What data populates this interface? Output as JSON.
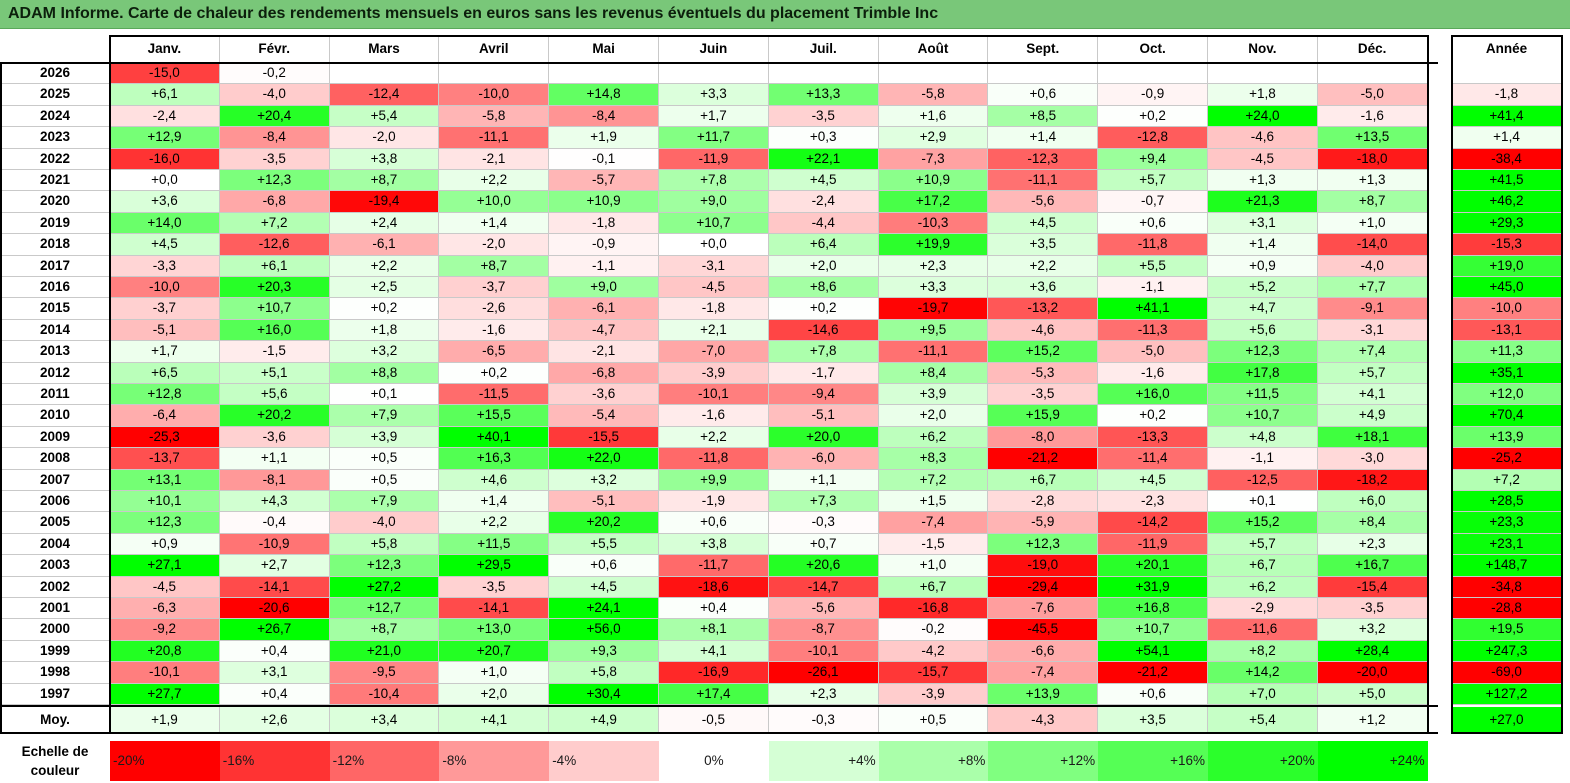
{
  "title": "ADAM Informe. Carte de chaleur des rendements mensuels en euros sans les revenus éventuels du placement Trimble Inc",
  "chart_data": {
    "type": "heatmap",
    "title": "ADAM Informe. Carte de chaleur des rendements mensuels en euros sans les revenus éventuels du placement Trimble Inc",
    "months": [
      "Janv.",
      "Févr.",
      "Mars",
      "Avril",
      "Mai",
      "Juin",
      "Juil.",
      "Août",
      "Sept.",
      "Oct.",
      "Nov.",
      "Déc."
    ],
    "year_header": "Année",
    "avg_label": "Moy.",
    "rows": [
      {
        "year": "2026",
        "values": [
          "-15,0",
          "-0,2",
          "",
          "",
          "",
          "",
          "",
          "",
          "",
          "",
          "",
          ""
        ],
        "annual": ""
      },
      {
        "year": "2025",
        "values": [
          "+6,1",
          "-4,0",
          "-12,4",
          "-10,0",
          "+14,8",
          "+3,3",
          "+13,3",
          "-5,8",
          "+0,6",
          "-0,9",
          "+1,8",
          "-5,0"
        ],
        "annual": "-1,8"
      },
      {
        "year": "2024",
        "values": [
          "-2,4",
          "+20,4",
          "+5,4",
          "-5,8",
          "-8,4",
          "+1,7",
          "-3,5",
          "+1,6",
          "+8,5",
          "+0,2",
          "+24,0",
          "-1,6"
        ],
        "annual": "+41,4"
      },
      {
        "year": "2023",
        "values": [
          "+12,9",
          "-8,4",
          "-2,0",
          "-11,1",
          "+1,9",
          "+11,7",
          "+0,3",
          "+2,9",
          "+1,4",
          "-12,8",
          "-4,6",
          "+13,5"
        ],
        "annual": "+1,4"
      },
      {
        "year": "2022",
        "values": [
          "-16,0",
          "-3,5",
          "+3,8",
          "-2,1",
          "-0,1",
          "-11,9",
          "+22,1",
          "-7,3",
          "-12,3",
          "+9,4",
          "-4,5",
          "-18,0"
        ],
        "annual": "-38,4"
      },
      {
        "year": "2021",
        "values": [
          "+0,0",
          "+12,3",
          "+8,7",
          "+2,2",
          "-5,7",
          "+7,8",
          "+4,5",
          "+10,9",
          "-11,1",
          "+5,7",
          "+1,3",
          "+1,3"
        ],
        "annual": "+41,5"
      },
      {
        "year": "2020",
        "values": [
          "+3,6",
          "-6,8",
          "-19,4",
          "+10,0",
          "+10,9",
          "+9,0",
          "-2,4",
          "+17,2",
          "-5,6",
          "-0,7",
          "+21,3",
          "+8,7"
        ],
        "annual": "+46,2"
      },
      {
        "year": "2019",
        "values": [
          "+14,0",
          "+7,2",
          "+2,4",
          "+1,4",
          "-1,8",
          "+10,7",
          "-4,4",
          "-10,3",
          "+4,5",
          "+0,6",
          "+3,1",
          "+1,0"
        ],
        "annual": "+29,3"
      },
      {
        "year": "2018",
        "values": [
          "+4,5",
          "-12,6",
          "-6,1",
          "-2,0",
          "-0,9",
          "+0,0",
          "+6,4",
          "+19,9",
          "+3,5",
          "-11,8",
          "+1,4",
          "-14,0"
        ],
        "annual": "-15,3"
      },
      {
        "year": "2017",
        "values": [
          "-3,3",
          "+6,1",
          "+2,2",
          "+8,7",
          "-1,1",
          "-3,1",
          "+2,0",
          "+2,3",
          "+2,2",
          "+5,5",
          "+0,9",
          "-4,0"
        ],
        "annual": "+19,0"
      },
      {
        "year": "2016",
        "values": [
          "-10,0",
          "+20,3",
          "+2,5",
          "-3,7",
          "+9,0",
          "-4,5",
          "+8,6",
          "+3,3",
          "+3,6",
          "-1,1",
          "+5,2",
          "+7,7"
        ],
        "annual": "+45,0"
      },
      {
        "year": "2015",
        "values": [
          "-3,7",
          "+10,7",
          "+0,2",
          "-2,6",
          "-6,1",
          "-1,8",
          "+0,2",
          "-19,7",
          "-13,2",
          "+41,1",
          "+4,7",
          "-9,1"
        ],
        "annual": "-10,0"
      },
      {
        "year": "2014",
        "values": [
          "-5,1",
          "+16,0",
          "+1,8",
          "-1,6",
          "-4,7",
          "+2,1",
          "-14,6",
          "+9,5",
          "-4,6",
          "-11,3",
          "+5,6",
          "-3,1"
        ],
        "annual": "-13,1"
      },
      {
        "year": "2013",
        "values": [
          "+1,7",
          "-1,5",
          "+3,2",
          "-6,5",
          "-2,1",
          "-7,0",
          "+7,8",
          "-11,1",
          "+15,2",
          "-5,0",
          "+12,3",
          "+7,4"
        ],
        "annual": "+11,3"
      },
      {
        "year": "2012",
        "values": [
          "+6,5",
          "+5,1",
          "+8,8",
          "+0,2",
          "-6,8",
          "-3,9",
          "-1,7",
          "+8,4",
          "-5,3",
          "-1,6",
          "+17,8",
          "+5,7"
        ],
        "annual": "+35,1"
      },
      {
        "year": "2011",
        "values": [
          "+12,8",
          "+5,6",
          "+0,1",
          "-11,5",
          "-3,6",
          "-10,1",
          "-9,4",
          "+3,9",
          "-3,5",
          "+16,0",
          "+11,5",
          "+4,1"
        ],
        "annual": "+12,0"
      },
      {
        "year": "2010",
        "values": [
          "-6,4",
          "+20,2",
          "+7,9",
          "+15,5",
          "-5,4",
          "-1,6",
          "-5,1",
          "+2,0",
          "+15,9",
          "+0,2",
          "+10,7",
          "+4,9"
        ],
        "annual": "+70,4"
      },
      {
        "year": "2009",
        "values": [
          "-25,3",
          "-3,6",
          "+3,9",
          "+40,1",
          "-15,5",
          "+2,2",
          "+20,0",
          "+6,2",
          "-8,0",
          "-13,3",
          "+4,8",
          "+18,1"
        ],
        "annual": "+13,9"
      },
      {
        "year": "2008",
        "values": [
          "-13,7",
          "+1,1",
          "+0,5",
          "+16,3",
          "+22,0",
          "-11,8",
          "-6,0",
          "+8,3",
          "-21,2",
          "-11,4",
          "-1,1",
          "-3,0"
        ],
        "annual": "-25,2"
      },
      {
        "year": "2007",
        "values": [
          "+13,1",
          "-8,1",
          "+0,5",
          "+4,6",
          "+3,2",
          "+9,9",
          "+1,1",
          "+7,2",
          "+6,7",
          "+4,5",
          "-12,5",
          "-18,2"
        ],
        "annual": "+7,2"
      },
      {
        "year": "2006",
        "values": [
          "+10,1",
          "+4,3",
          "+7,9",
          "+1,4",
          "-5,1",
          "-1,9",
          "+7,3",
          "+1,5",
          "-2,8",
          "-2,3",
          "+0,1",
          "+6,0"
        ],
        "annual": "+28,5"
      },
      {
        "year": "2005",
        "values": [
          "+12,3",
          "-0,4",
          "-4,0",
          "+2,2",
          "+20,2",
          "+0,6",
          "-0,3",
          "-7,4",
          "-5,9",
          "-14,2",
          "+15,2",
          "+8,4"
        ],
        "annual": "+23,3"
      },
      {
        "year": "2004",
        "values": [
          "+0,9",
          "-10,9",
          "+5,8",
          "+11,5",
          "+5,5",
          "+3,8",
          "+0,7",
          "-1,5",
          "+12,3",
          "-11,9",
          "+5,7",
          "+2,3"
        ],
        "annual": "+23,1"
      },
      {
        "year": "2003",
        "values": [
          "+27,1",
          "+2,7",
          "+12,3",
          "+29,5",
          "+0,6",
          "-11,7",
          "+20,6",
          "+1,0",
          "-19,0",
          "+20,1",
          "+6,7",
          "+16,7"
        ],
        "annual": "+148,7"
      },
      {
        "year": "2002",
        "values": [
          "-4,5",
          "-14,1",
          "+27,2",
          "-3,5",
          "+4,5",
          "-18,6",
          "-14,7",
          "+6,7",
          "-29,4",
          "+31,9",
          "+6,2",
          "-15,4"
        ],
        "annual": "-34,8"
      },
      {
        "year": "2001",
        "values": [
          "-6,3",
          "-20,6",
          "+12,7",
          "-14,1",
          "+24,1",
          "+0,4",
          "-5,6",
          "-16,8",
          "-7,6",
          "+16,8",
          "-2,9",
          "-3,5"
        ],
        "annual": "-28,8"
      },
      {
        "year": "2000",
        "values": [
          "-9,2",
          "+26,7",
          "+8,7",
          "+13,0",
          "+56,0",
          "+8,1",
          "-8,7",
          "-0,2",
          "-45,5",
          "+10,7",
          "-11,6",
          "+3,2"
        ],
        "annual": "+19,5"
      },
      {
        "year": "1999",
        "values": [
          "+20,8",
          "+0,4",
          "+21,0",
          "+20,7",
          "+9,3",
          "+4,1",
          "-10,1",
          "-4,2",
          "-6,6",
          "+54,1",
          "+8,2",
          "+28,4"
        ],
        "annual": "+247,3"
      },
      {
        "year": "1998",
        "values": [
          "-10,1",
          "+3,1",
          "-9,5",
          "+1,0",
          "+5,8",
          "-16,9",
          "-26,1",
          "-15,7",
          "-7,4",
          "-21,2",
          "+14,2",
          "-20,0"
        ],
        "annual": "-69,0"
      },
      {
        "year": "1997",
        "values": [
          "+27,7",
          "+0,4",
          "-10,4",
          "+2,0",
          "+30,4",
          "+17,4",
          "+2,3",
          "-3,9",
          "+13,9",
          "+0,6",
          "+7,0",
          "+5,0"
        ],
        "annual": "+127,2"
      }
    ],
    "average": {
      "values": [
        "+1,9",
        "+2,6",
        "+3,4",
        "+4,1",
        "+4,9",
        "-0,5",
        "-0,3",
        "+0,5",
        "-4,3",
        "+3,5",
        "+5,4",
        "+1,2"
      ],
      "annual": "+27,0"
    },
    "legend_title": "Echelle de couleur",
    "legend": [
      {
        "label": "-20%",
        "value": -20
      },
      {
        "label": "-16%",
        "value": -16
      },
      {
        "label": "-12%",
        "value": -12
      },
      {
        "label": "-8%",
        "value": -8
      },
      {
        "label": "-4%",
        "value": -4
      },
      {
        "label": "0%",
        "value": 0
      },
      {
        "label": "+4%",
        "value": 4
      },
      {
        "label": "+8%",
        "value": 8
      },
      {
        "label": "+12%",
        "value": 12
      },
      {
        "label": "+16%",
        "value": 16
      },
      {
        "label": "+20%",
        "value": 20
      },
      {
        "label": "+24%",
        "value": 24
      }
    ],
    "color_range": [
      -20,
      24
    ],
    "colors": {
      "negative": "#ff0000",
      "neutral": "#ffffff",
      "positive": "#00ff00"
    }
  }
}
